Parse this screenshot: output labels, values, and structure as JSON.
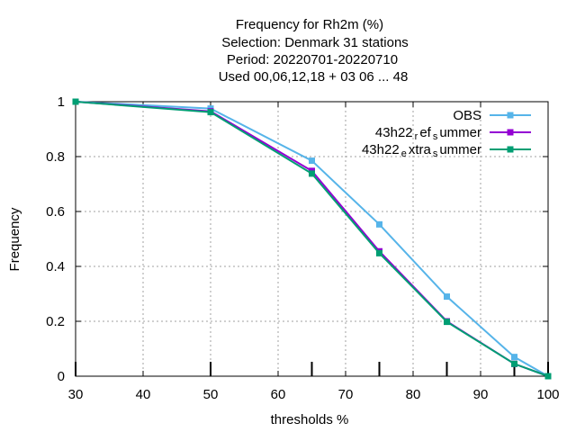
{
  "chart_data": {
    "type": "line",
    "title_lines": [
      "Frequency  for Rh2m (%)",
      "Selection: Denmark     31 stations",
      "Period: 20220701-20220710",
      "Used  00,06,12,18  + 03 06 ... 48"
    ],
    "xlabel": "thresholds %",
    "ylabel": "Frequency",
    "xlim": [
      30,
      100
    ],
    "ylim": [
      0,
      1
    ],
    "xticks": [
      30,
      40,
      50,
      60,
      70,
      80,
      90,
      100
    ],
    "yticks": [
      0,
      0.2,
      0.4,
      0.6,
      0.8,
      1
    ],
    "grid": true,
    "legend_position": "top-right",
    "threshold_marks": [
      30,
      50,
      65,
      75,
      85,
      95,
      100
    ],
    "series": [
      {
        "name": "OBS",
        "legend_parts": [
          {
            "t": "OBS",
            "sub": false
          }
        ],
        "color": "#56b4e9",
        "x": [
          30,
          50,
          65,
          75,
          85,
          95,
          100
        ],
        "y": [
          1.0,
          0.975,
          0.785,
          0.553,
          0.29,
          0.07,
          0.0
        ]
      },
      {
        "name": "43h22_ref_summer",
        "legend_parts": [
          {
            "t": "43h22",
            "sub": false
          },
          {
            "t": "r",
            "sub": true
          },
          {
            "t": "ef",
            "sub": false
          },
          {
            "t": "s",
            "sub": true
          },
          {
            "t": "ummer",
            "sub": false
          }
        ],
        "color": "#9400d3",
        "x": [
          30,
          50,
          65,
          75,
          85,
          95,
          100
        ],
        "y": [
          1.0,
          0.965,
          0.748,
          0.455,
          0.2,
          0.045,
          0.0
        ]
      },
      {
        "name": "43h22_extra_summer",
        "legend_parts": [
          {
            "t": "43h22",
            "sub": false
          },
          {
            "t": "e",
            "sub": true
          },
          {
            "t": "xtra",
            "sub": false
          },
          {
            "t": "s",
            "sub": true
          },
          {
            "t": "ummer",
            "sub": false
          }
        ],
        "color": "#009e73",
        "x": [
          30,
          50,
          65,
          75,
          85,
          95,
          100
        ],
        "y": [
          1.0,
          0.962,
          0.738,
          0.448,
          0.198,
          0.045,
          0.0
        ]
      }
    ]
  }
}
